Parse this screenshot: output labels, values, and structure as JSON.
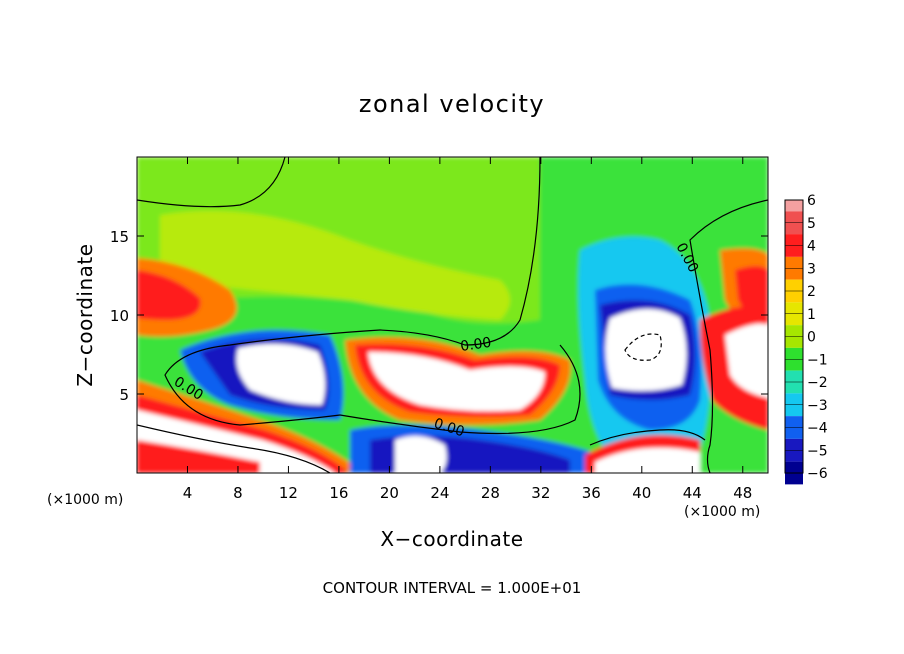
{
  "chart_data": {
    "type": "heatmap",
    "title": "zonal velocity",
    "xlabel": "X−coordinate",
    "ylabel": "Z−coordinate",
    "x_unit": "(×1000 m)",
    "z_unit": "(×1000 m)",
    "xlim": [
      0,
      50
    ],
    "ylim": [
      0,
      20
    ],
    "x_ticks": [
      4,
      8,
      12,
      16,
      20,
      24,
      28,
      32,
      36,
      40,
      44,
      48
    ],
    "y_ticks": [
      5,
      10,
      15
    ],
    "colorbar": {
      "levels": [
        6,
        5,
        4,
        3,
        2,
        1,
        0,
        -1,
        -2,
        -3,
        -4,
        -5,
        -6
      ],
      "tick_labels": [
        "6",
        "5",
        "4",
        "3",
        "2",
        "1",
        "0",
        "−1",
        "−2",
        "−3",
        "−4",
        "−5",
        "−6"
      ],
      "colors": [
        "#f4a0a0",
        "#f05050",
        "#ff1e1e",
        "#ff7a00",
        "#ffd000",
        "#e6e600",
        "#a6e600",
        "#2ee02e",
        "#22e0b0",
        "#15c8f0",
        "#1060f0",
        "#1818c0",
        "#000090",
        "#7a00a0"
      ]
    },
    "contour_labels": [
      "0.00",
      "0.00",
      "0.00",
      "0.00"
    ],
    "footer": "CONTOUR INTERVAL = 1.000E+01"
  },
  "colors": {
    "background": "#ffffff",
    "saturated_region": "#ffffff"
  }
}
